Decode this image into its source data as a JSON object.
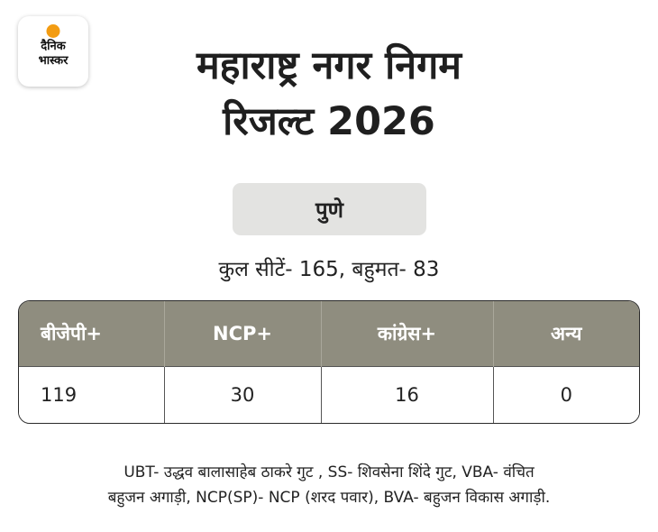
{
  "logo": {
    "line1": "दैनिक",
    "line2": "भास्कर"
  },
  "title": {
    "line1": "महाराष्ट्र नगर निगम",
    "line2": "रिजल्ट 2026"
  },
  "city": "पुणे",
  "summary": "कुल सीटें- 165, बहुमत- 83",
  "table": {
    "headers": [
      "बीजेपी+",
      "NCP+",
      "कांग्रेस+",
      "अन्य"
    ],
    "values": [
      "119",
      "30",
      "16",
      "0"
    ]
  },
  "note": {
    "line1": "UBT- उद्धव बालासाहेब ठाकरे गुट , SS- शिवसेना शिंदे गुट, VBA- वंचित",
    "line2": "बहुजन अगाड़ी, NCP(SP)- NCP (शरद पवार), BVA- बहुजन विकास अगाड़ी."
  },
  "colors": {
    "header_bg": "#8f8d7f",
    "pill_bg": "#e3e3e1",
    "logo_sun": "#f39c12"
  }
}
